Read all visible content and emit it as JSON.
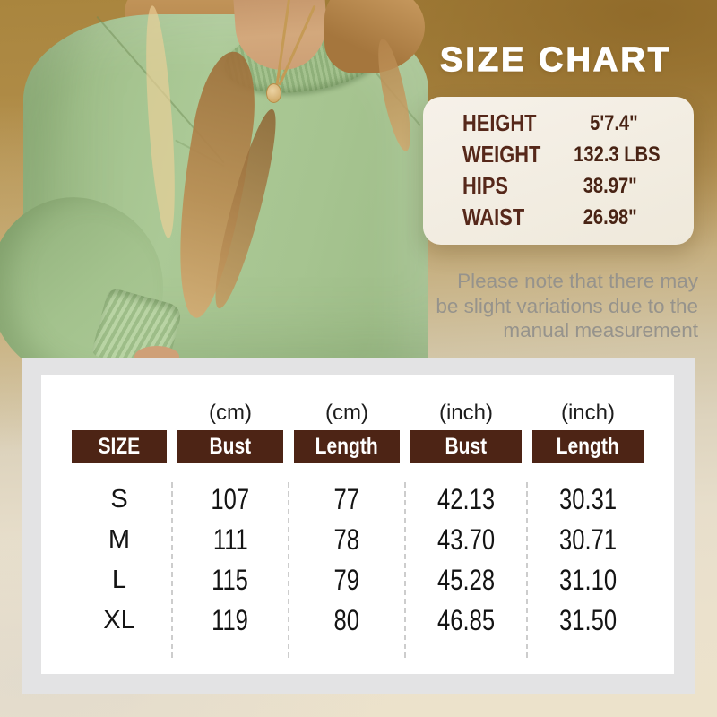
{
  "page": {
    "title": "SIZE CHART"
  },
  "model_stats": {
    "rows": [
      {
        "label": "HEIGHT",
        "value": "5'7.4\""
      },
      {
        "label": "WEIGHT",
        "value": "132.3 LBS"
      },
      {
        "label": "HIPS",
        "value": "38.97\""
      },
      {
        "label": "WAIST",
        "value": "26.98\""
      }
    ]
  },
  "note": {
    "lines": [
      "Please note that there may",
      "be slight variations due to the",
      "manual measurement"
    ]
  },
  "chart_data": {
    "type": "table",
    "title": "SIZE CHART",
    "unit_labels": [
      "",
      "(cm)",
      "(cm)",
      "(inch)",
      "(inch)"
    ],
    "columns": [
      "SIZE",
      "Bust",
      "Length",
      "Bust",
      "Length"
    ],
    "rows": [
      [
        "S",
        "107",
        "77",
        "42.13",
        "30.31"
      ],
      [
        "M",
        "111",
        "78",
        "43.70",
        "30.71"
      ],
      [
        "L",
        "115",
        "79",
        "45.28",
        "31.10"
      ],
      [
        "XL",
        "119",
        "80",
        "46.85",
        "31.50"
      ]
    ]
  },
  "colors": {
    "header_brown": "#4d2415",
    "label_brown": "#56281a",
    "title_white": "#ffffff",
    "note_gray": "#96938c",
    "card_gray": "#e3e3e4",
    "stats_cream": "#f3eee4",
    "background_gold": "#a9853e",
    "background_beige": "#ece2cb",
    "sweatshirt_green": "#a8c692"
  }
}
